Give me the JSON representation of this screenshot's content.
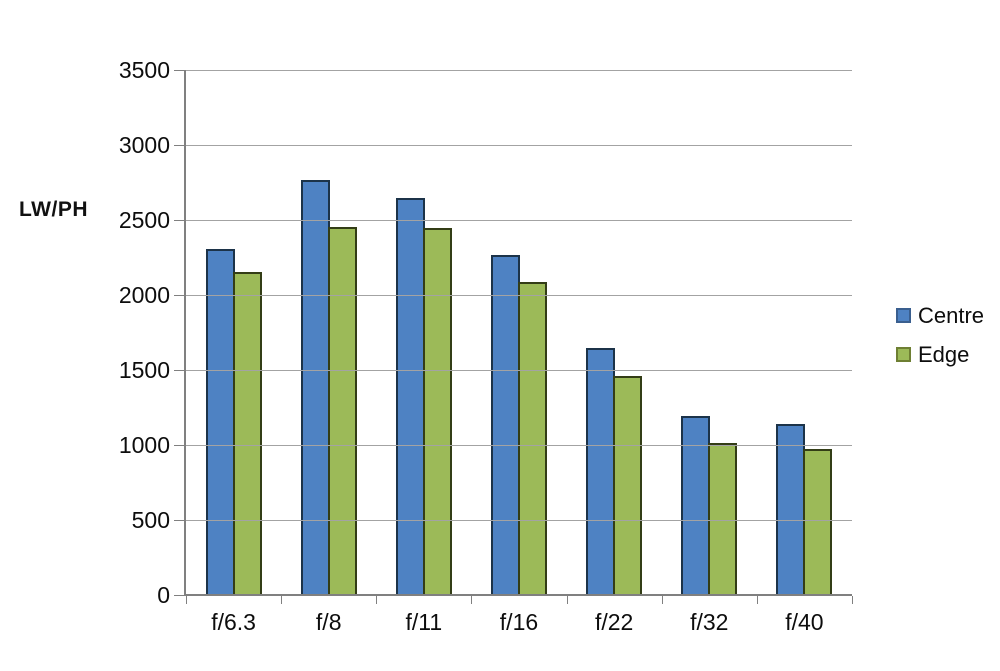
{
  "chart_data": {
    "type": "bar",
    "title": "",
    "ylabel": "LW/PH",
    "xlabel": "",
    "categories": [
      "f/6.3",
      "f/8",
      "f/11",
      "f/16",
      "f/22",
      "f/32",
      "f/40"
    ],
    "series": [
      {
        "name": "Centre",
        "color": "#4e82c3",
        "border_color": "#1c3349",
        "swatch_border_color": "#3a5f8f",
        "values": [
          2310,
          2770,
          2650,
          2265,
          1650,
          1195,
          1140
        ]
      },
      {
        "name": "Edge",
        "color": "#9cba58",
        "border_color": "#333d16",
        "swatch_border_color": "#6e7f33",
        "values": [
          2155,
          2455,
          2450,
          2085,
          1460,
          1015,
          975
        ]
      }
    ],
    "ylim": [
      0,
      3500
    ],
    "ytick_step": 500,
    "yticks": [
      "0",
      "500",
      "1000",
      "1500",
      "2000",
      "2500",
      "3000",
      "3500"
    ],
    "grid": true,
    "legend_position": "right",
    "grid_color": "#a3a3a3",
    "axis_color": "#808080",
    "text_color": "#0d0d0d"
  }
}
